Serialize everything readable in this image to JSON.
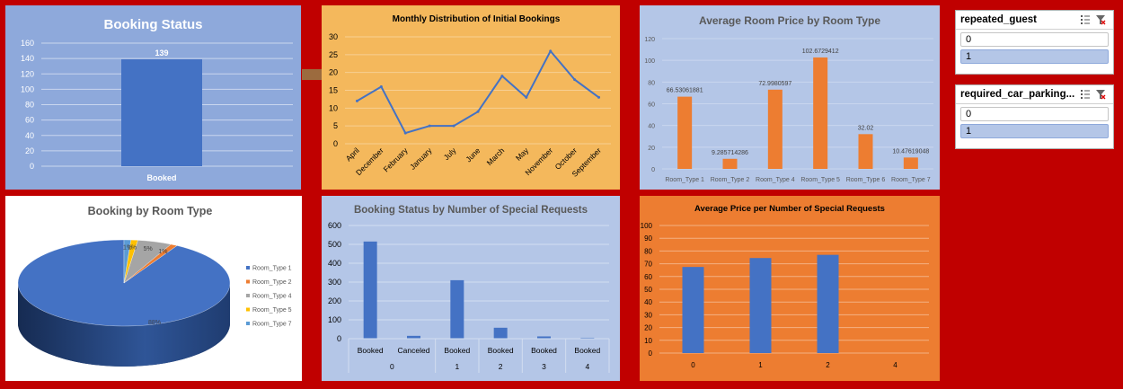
{
  "chart_data": [
    {
      "id": "booking-status",
      "type": "bar",
      "title": "Booking Status",
      "categories": [
        "Booked"
      ],
      "values": [
        139
      ],
      "data_labels": [
        "139"
      ],
      "ylim": [
        0,
        160
      ],
      "yticks": [
        0,
        20,
        40,
        60,
        80,
        100,
        120,
        140,
        160
      ],
      "grid": true,
      "colors": {
        "bg": "#8EA9DB",
        "bar": "#4472C4"
      }
    },
    {
      "id": "monthly-distribution",
      "type": "line",
      "title": "Monthly Distribution of Initial Bookings",
      "categories": [
        "April",
        "December",
        "February",
        "January",
        "July",
        "June",
        "March",
        "May",
        "November",
        "October",
        "September"
      ],
      "values": [
        12,
        16,
        3,
        5,
        5,
        9,
        19,
        13,
        26,
        18,
        13
      ],
      "ylim": [
        0,
        30
      ],
      "yticks": [
        0,
        5,
        10,
        15,
        20,
        25,
        30
      ],
      "grid": true,
      "colors": {
        "bg": "#F4B85C",
        "line": "#4472C4"
      }
    },
    {
      "id": "avg-room-price",
      "type": "bar",
      "title": "Average Room Price by Room Type",
      "categories": [
        "Room_Type 1",
        "Room_Type 2",
        "Room_Type 4",
        "Room_Type 5",
        "Room_Type 6",
        "Room_Type 7"
      ],
      "values": [
        66.53061881,
        9.285714286,
        72.9980597,
        102.6729412,
        32.02,
        10.47619048
      ],
      "data_labels": [
        "66.53061881",
        "9.285714286",
        "72.9980597",
        "102.6729412",
        "32.02",
        "10.47619048"
      ],
      "ylim": [
        0,
        120
      ],
      "yticks": [
        0,
        20,
        40,
        60,
        80,
        100,
        120
      ],
      "grid": true,
      "colors": {
        "bg": "#B4C6E7",
        "bar": "#ED7D31"
      }
    },
    {
      "id": "booking-by-room-type",
      "type": "pie",
      "title": "Booking by Room Type",
      "categories": [
        "Room_Type 1",
        "Room_Type 2",
        "Room_Type 4",
        "Room_Type 5",
        "Room_Type 7"
      ],
      "values": [
        88,
        1,
        5,
        1,
        1
      ],
      "data_labels": [
        "88%",
        "1%",
        "5%",
        "1%",
        "1%"
      ],
      "legend": "right",
      "colors": {
        "bg": "#FFFFFF",
        "slices": [
          "#4472C4",
          "#ED7D31",
          "#A5A5A5",
          "#FFC000",
          "#5B9BD5"
        ]
      }
    },
    {
      "id": "status-by-special-requests",
      "type": "bar",
      "title": "Booking Status by Number of Special Requests",
      "groups": [
        {
          "label": "0",
          "categories": [
            "Booked",
            "Canceled"
          ],
          "values": [
            515,
            15
          ]
        },
        {
          "label": "1",
          "categories": [
            "Booked"
          ],
          "values": [
            310
          ]
        },
        {
          "label": "2",
          "categories": [
            "Booked"
          ],
          "values": [
            58
          ]
        },
        {
          "label": "3",
          "categories": [
            "Booked"
          ],
          "values": [
            12
          ]
        },
        {
          "label": "4",
          "categories": [
            "Booked"
          ],
          "values": [
            5
          ]
        }
      ],
      "ylim": [
        0,
        600
      ],
      "yticks": [
        0,
        100,
        200,
        300,
        400,
        500,
        600
      ],
      "grid": true,
      "colors": {
        "bg": "#B4C6E7",
        "bar": "#4472C4"
      }
    },
    {
      "id": "avg-price-per-special-requests",
      "type": "bar",
      "title": "Average Price per Number of Special Requests",
      "categories": [
        "0",
        "1",
        "2",
        "4"
      ],
      "values": [
        67.5,
        74.5,
        77,
        0
      ],
      "ylim": [
        0,
        100
      ],
      "yticks": [
        0,
        10,
        20,
        30,
        40,
        50,
        60,
        70,
        80,
        90,
        100
      ],
      "grid": true,
      "colors": {
        "bg": "#ED7D31",
        "bar": "#4472C4"
      }
    }
  ],
  "slicers": [
    {
      "title": "repeated_guest",
      "items": [
        {
          "label": "0",
          "selected": false
        },
        {
          "label": "1",
          "selected": true
        }
      ]
    },
    {
      "title": "required_car_parking...",
      "items": [
        {
          "label": "0",
          "selected": false
        },
        {
          "label": "1",
          "selected": true
        }
      ]
    }
  ],
  "icons": {
    "multiselect": "multi-select-icon",
    "clear_filter": "clear-filter-icon"
  }
}
